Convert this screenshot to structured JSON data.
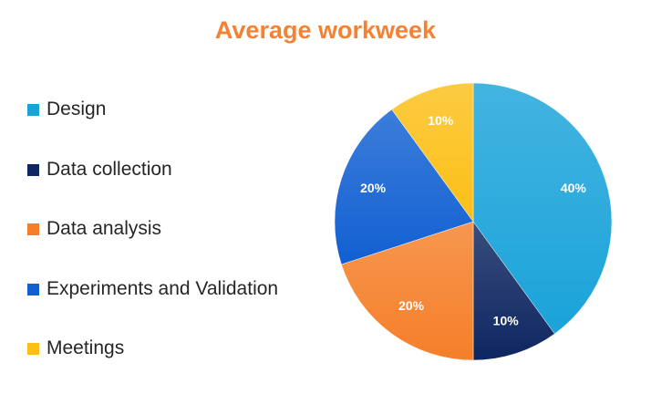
{
  "chart_data": {
    "type": "pie",
    "title": "Average workweek",
    "categories": [
      "Design",
      "Data collection",
      "Data analysis",
      "Experiments and Validation",
      "Meetings"
    ],
    "values": [
      40,
      10,
      20,
      20,
      10
    ],
    "labels": [
      "40%",
      "10%",
      "20%",
      "20%",
      "10%"
    ],
    "legend_position": "left",
    "colors": [
      "#1aa3d9",
      "#0e2661",
      "#f57f29",
      "#1160d2",
      "#fbbf17"
    ],
    "label_colors": [
      "#ffffff",
      "#ffffff",
      "#ffffff",
      "#ffffff",
      "#ffffff"
    ]
  }
}
